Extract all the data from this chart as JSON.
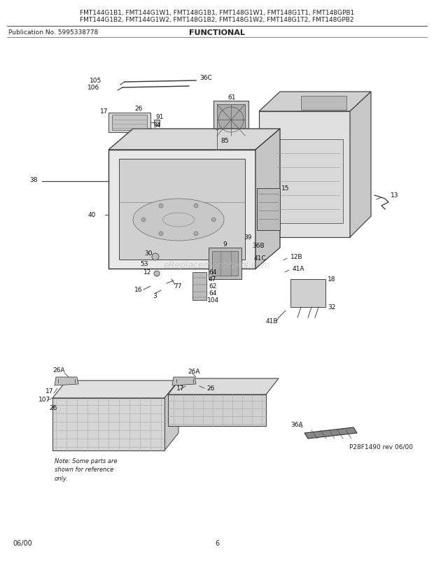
{
  "title_line1": "FMT144G1B1, FMT144G1W1, FMT148G1B1, FMT148G1W1, FMT148G1T1, FMT148GPB1",
  "title_line2": "FMT144G1B2, FMT144G1W2, FMT148G1B2, FMT148G1W2, FMT148G1T2, FMT148GPB2",
  "pub_no": "Publication No. 5995338778",
  "section": "FUNCTIONAL",
  "footer_left": "06/00",
  "footer_center": "6",
  "footer_note": "P28F1490 rev 06/00",
  "watermark": "eReplacementParts.com",
  "bg_color": "#ffffff",
  "lc": "#333333",
  "tc": "#222222",
  "note_text": "Note: Some parts are\nshown for reference\nonly."
}
